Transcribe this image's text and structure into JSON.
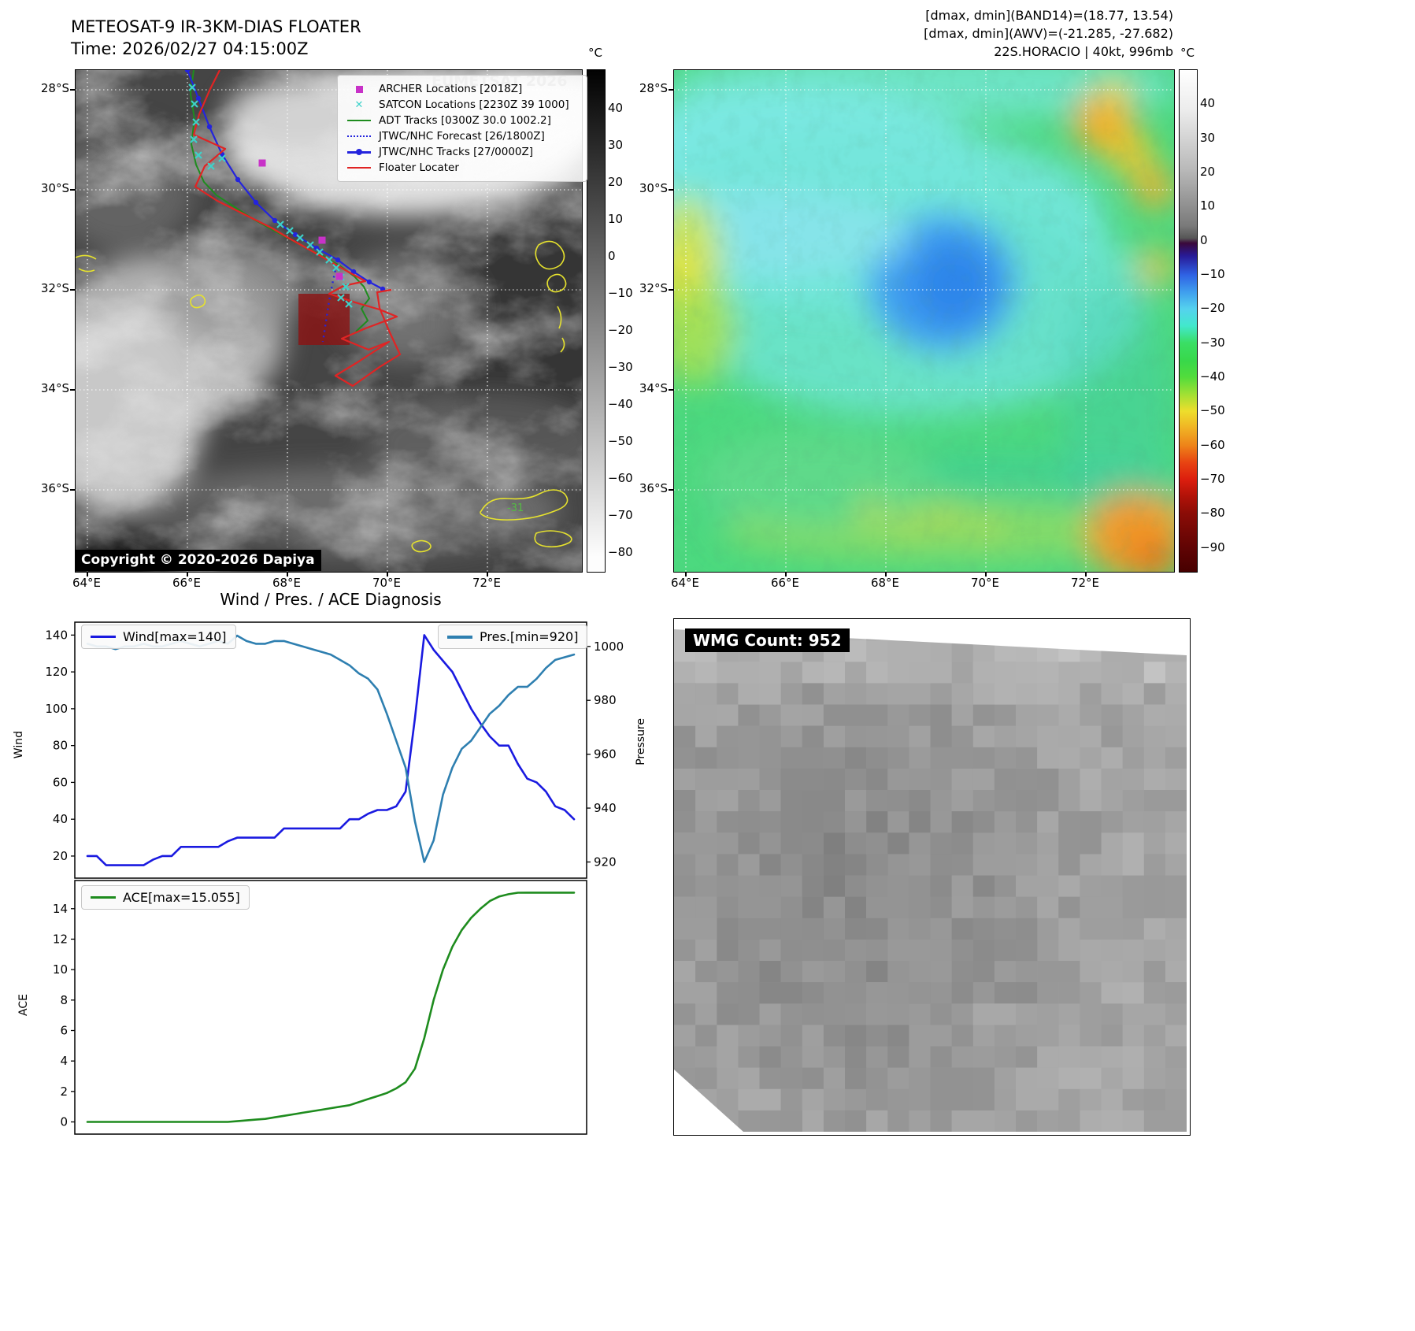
{
  "ir_panel": {
    "title": "METEOSAT-9 IR-3KM-DIAS FLOATER",
    "subtitle": "Time: 2026/02/27 04:15:00Z",
    "watermark": "EUMETSAT 2026",
    "copyright": "Copyright © 2020-2026 Dapiya",
    "contour_label": "-31",
    "colorbar_unit": "°C",
    "colorbar_ticks": [
      "40",
      "30",
      "20",
      "10",
      "0",
      "−10",
      "−20",
      "−30",
      "−40",
      "−50",
      "−60",
      "−70",
      "−80"
    ],
    "x_ticks": [
      "64°E",
      "66°E",
      "68°E",
      "70°E",
      "72°E"
    ],
    "y_ticks": [
      "28°S",
      "30°S",
      "32°S",
      "34°S",
      "36°S"
    ],
    "legend_items": [
      {
        "label": "ARCHER Locations [2018Z]",
        "marker": "square",
        "color": "#c832c8"
      },
      {
        "label": "SATCON Locations [2230Z 39 1000]",
        "marker": "x",
        "color": "#3ed2ca"
      },
      {
        "label": "ADT Tracks [0300Z 30.0 1002.2]",
        "marker": "line",
        "color": "#1e8c1e"
      },
      {
        "label": "JTWC/NHC Forecast [26/1800Z]",
        "marker": "dotted",
        "color": "#2424dd"
      },
      {
        "label": "JTWC/NHC Tracks [27/0000Z]",
        "marker": "line-marker",
        "color": "#2424dd"
      },
      {
        "label": "Floater Locater",
        "marker": "line",
        "color": "#e02424"
      }
    ]
  },
  "awv_panel": {
    "header_line1": "[dmax, dmin](BAND14)=(18.77, 13.54)",
    "header_line2": "[dmax, dmin](AWV)=(-21.285, -27.682)",
    "header_line3": "22S.HORACIO | 40kt, 996mb",
    "colorbar_unit": "°C",
    "colorbar_ticks": [
      "40",
      "30",
      "20",
      "10",
      "0",
      "−10",
      "−20",
      "−30",
      "−40",
      "−50",
      "−60",
      "−70",
      "−80",
      "−90"
    ],
    "x_ticks": [
      "64°E",
      "66°E",
      "68°E",
      "70°E",
      "72°E"
    ],
    "y_ticks": [
      "28°S",
      "30°S",
      "32°S",
      "34°S",
      "36°S"
    ]
  },
  "diagnosis": {
    "title": "Wind / Pres. / ACE Diagnosis",
    "ylabel_wind": "Wind",
    "ylabel_pressure": "Pressure",
    "ylabel_ace": "ACE"
  },
  "wmg_panel": {
    "label": "WMG Count: 952"
  },
  "chart_data": [
    {
      "type": "line",
      "title": "Wind / Pres. / ACE Diagnosis",
      "x_unit": "time step",
      "series": [
        {
          "name": "Wind[max=140]",
          "axis": "left",
          "color": "#1a1ae0",
          "max": 140,
          "values": [
            20,
            20,
            15,
            15,
            15,
            15,
            15,
            18,
            20,
            20,
            25,
            25,
            25,
            25,
            25,
            28,
            30,
            30,
            30,
            30,
            30,
            35,
            35,
            35,
            35,
            35,
            35,
            35,
            40,
            40,
            43,
            45,
            45,
            47,
            55,
            95,
            140,
            132,
            126,
            120,
            110,
            100,
            92,
            85,
            80,
            80,
            70,
            62,
            60,
            55,
            47,
            45,
            40
          ]
        },
        {
          "name": "Pres.[min=920]",
          "axis": "right",
          "color": "#2e7fb0",
          "min": 920,
          "values": [
            1001,
            1000,
            1000,
            999,
            1000,
            1000,
            1001,
            1000,
            1000,
            1001,
            1002,
            1001,
            1000,
            1001,
            1002,
            1001,
            1004,
            1002,
            1001,
            1001,
            1002,
            1002,
            1001,
            1000,
            999,
            998,
            997,
            995,
            993,
            990,
            988,
            984,
            975,
            965,
            955,
            935,
            920,
            928,
            945,
            955,
            962,
            965,
            970,
            975,
            978,
            982,
            985,
            985,
            988,
            992,
            995,
            996,
            997
          ]
        }
      ],
      "ylim_left": [
        8,
        147
      ],
      "ylim_right": [
        914,
        1009
      ],
      "yticks_left": [
        20,
        40,
        60,
        80,
        100,
        120,
        140
      ],
      "yticks_right": [
        920,
        940,
        960,
        980,
        1000
      ]
    },
    {
      "type": "line",
      "series": [
        {
          "name": "ACE[max=15.055]",
          "axis": "left",
          "color": "#1e8c1e",
          "max": 15.055,
          "values": [
            0,
            0,
            0,
            0,
            0,
            0,
            0,
            0,
            0,
            0,
            0,
            0,
            0,
            0,
            0,
            0,
            0.05,
            0.1,
            0.15,
            0.2,
            0.3,
            0.4,
            0.5,
            0.6,
            0.7,
            0.8,
            0.9,
            1,
            1.1,
            1.3,
            1.5,
            1.7,
            1.9,
            2.2,
            2.6,
            3.5,
            5.5,
            8,
            10,
            11.5,
            12.6,
            13.4,
            14,
            14.5,
            14.8,
            14.95,
            15.05,
            15.055,
            15.055,
            15.055,
            15.055,
            15.055,
            15.055
          ]
        }
      ],
      "ylim": [
        -0.8,
        15.85
      ],
      "yticks": [
        0,
        2,
        4,
        6,
        8,
        10,
        12,
        14
      ]
    }
  ]
}
